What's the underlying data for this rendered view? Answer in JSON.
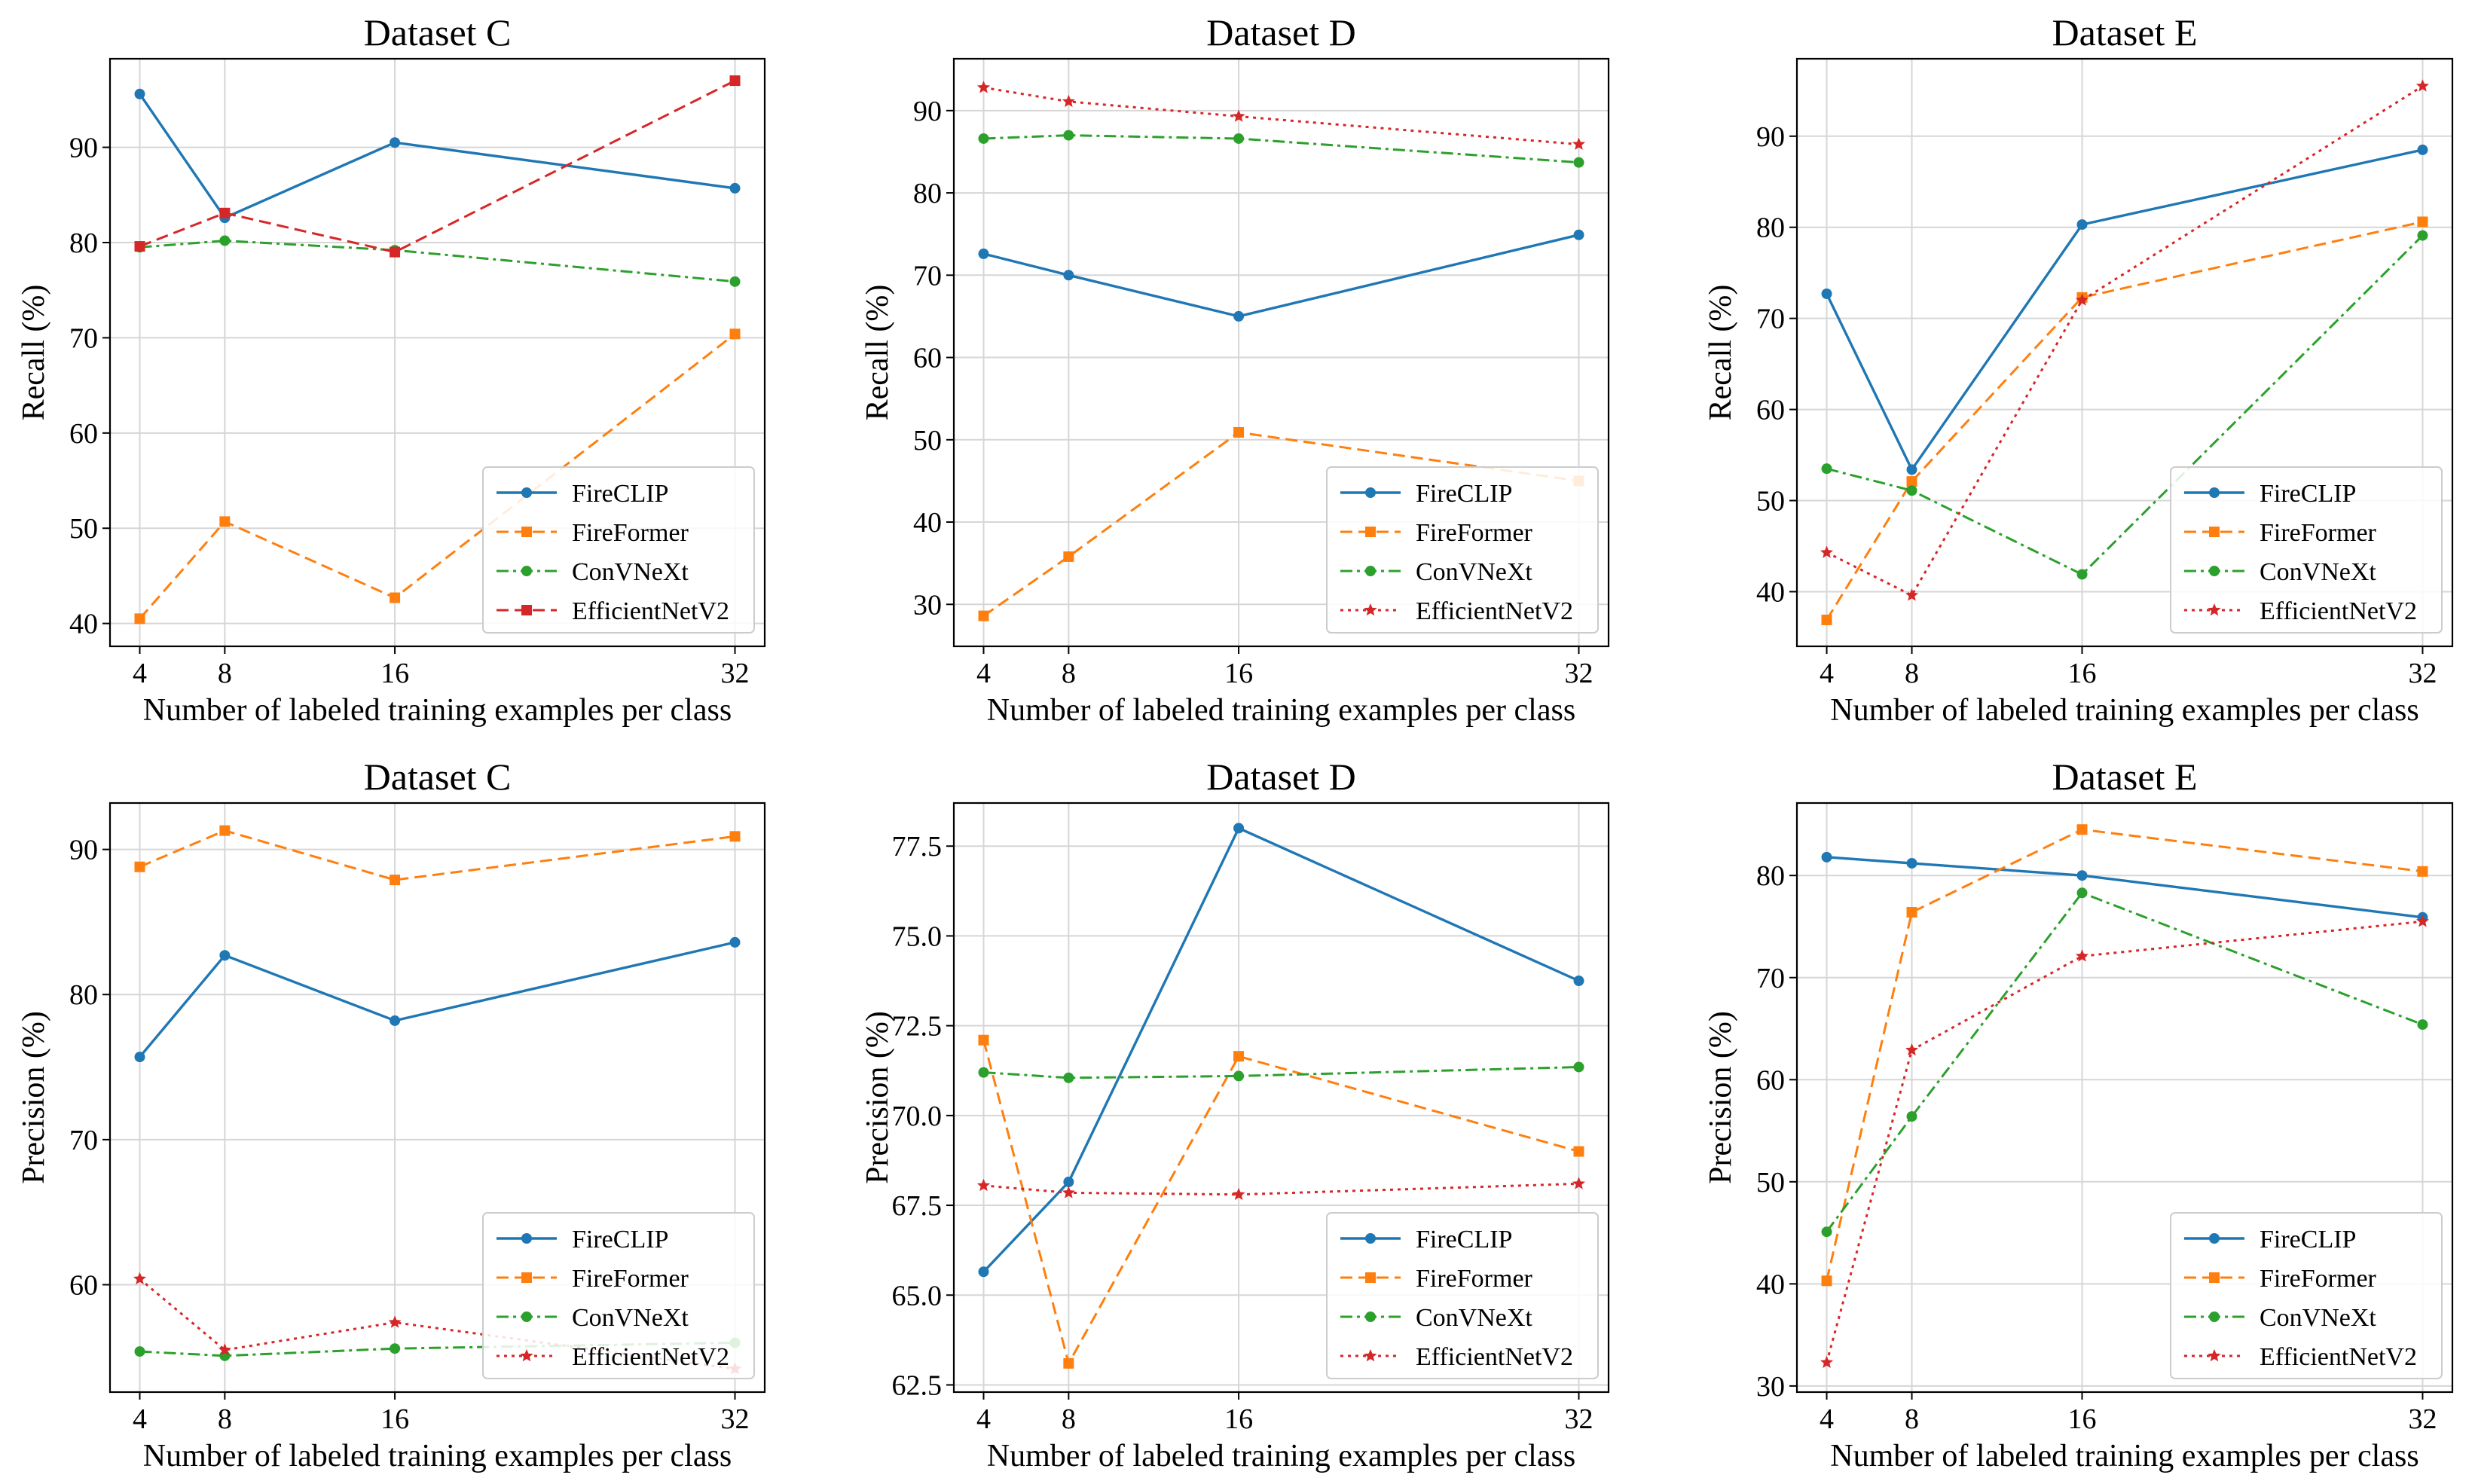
{
  "colors": {
    "FireCLIP": "#1f77b4",
    "FireFormer": "#ff7f0e",
    "ConVNeXt": "#2ca02c",
    "EfficientNetV2": "#d62728"
  },
  "chart_data": [
    {
      "type": "line",
      "title": "Dataset C",
      "xlabel": "Number of labeled training examples per class",
      "ylabel": "Recall (%)",
      "x": [
        4,
        8,
        16,
        32
      ],
      "xlim": [
        2.6,
        33.4
      ],
      "ylim": [
        37.6,
        99.3
      ],
      "yticks": [
        40,
        50,
        60,
        70,
        80,
        90
      ],
      "legend_position": "lower-right",
      "series": [
        {
          "name": "FireCLIP",
          "style": "solid",
          "marker": "circle",
          "values": [
            95.6,
            82.6,
            90.5,
            85.7
          ]
        },
        {
          "name": "FireFormer",
          "style": "dashed",
          "marker": "square",
          "values": [
            40.5,
            50.7,
            42.7,
            70.4
          ]
        },
        {
          "name": "ConVNeXt",
          "style": "dashdot",
          "marker": "circle",
          "values": [
            79.5,
            80.2,
            79.2,
            75.9
          ]
        },
        {
          "name": "EfficientNetV2",
          "style": "dashed",
          "marker": "square",
          "values": [
            79.6,
            83.1,
            79.0,
            97.0
          ]
        }
      ]
    },
    {
      "type": "line",
      "title": "Dataset D",
      "xlabel": "Number of labeled training examples per class",
      "ylabel": "Recall (%)",
      "x": [
        4,
        8,
        16,
        32
      ],
      "xlim": [
        2.6,
        33.4
      ],
      "ylim": [
        24.9,
        96.3
      ],
      "yticks": [
        30,
        40,
        50,
        60,
        70,
        80,
        90
      ],
      "legend_position": "lower-right",
      "series": [
        {
          "name": "FireCLIP",
          "style": "solid",
          "marker": "circle",
          "values": [
            72.6,
            70.0,
            65.0,
            74.9
          ]
        },
        {
          "name": "FireFormer",
          "style": "dashed",
          "marker": "square",
          "values": [
            28.6,
            35.8,
            50.9,
            45.0
          ]
        },
        {
          "name": "ConVNeXt",
          "style": "dashdot",
          "marker": "circle",
          "values": [
            86.6,
            87.0,
            86.6,
            83.7
          ]
        },
        {
          "name": "EfficientNetV2",
          "style": "dotted",
          "marker": "star",
          "values": [
            92.8,
            91.1,
            89.3,
            85.9
          ]
        }
      ]
    },
    {
      "type": "line",
      "title": "Dataset E",
      "xlabel": "Number of labeled training examples per class",
      "ylabel": "Recall (%)",
      "x": [
        4,
        8,
        16,
        32
      ],
      "xlim": [
        2.6,
        33.4
      ],
      "ylim": [
        34.0,
        98.5
      ],
      "yticks": [
        40,
        50,
        60,
        70,
        80,
        90
      ],
      "legend_position": "lower-right",
      "series": [
        {
          "name": "FireCLIP",
          "style": "solid",
          "marker": "circle",
          "values": [
            72.7,
            53.4,
            80.3,
            88.5
          ]
        },
        {
          "name": "FireFormer",
          "style": "dashed",
          "marker": "square",
          "values": [
            36.9,
            52.1,
            72.3,
            80.6
          ]
        },
        {
          "name": "ConVNeXt",
          "style": "dashdot",
          "marker": "circle",
          "values": [
            53.5,
            51.1,
            41.9,
            79.1
          ]
        },
        {
          "name": "EfficientNetV2",
          "style": "dotted",
          "marker": "star",
          "values": [
            44.3,
            39.6,
            72.0,
            95.5
          ]
        }
      ]
    },
    {
      "type": "line",
      "title": "Dataset C",
      "xlabel": "Number of labeled training examples per class",
      "ylabel": "Precision (%)",
      "x": [
        4,
        8,
        16,
        32
      ],
      "xlim": [
        2.6,
        33.4
      ],
      "ylim": [
        52.6,
        93.2
      ],
      "yticks": [
        60,
        70,
        80,
        90
      ],
      "legend_position": "lower-right",
      "series": [
        {
          "name": "FireCLIP",
          "style": "solid",
          "marker": "circle",
          "values": [
            75.7,
            82.7,
            78.2,
            83.6
          ]
        },
        {
          "name": "FireFormer",
          "style": "dashed",
          "marker": "square",
          "values": [
            88.8,
            91.3,
            87.9,
            90.9
          ]
        },
        {
          "name": "ConVNeXt",
          "style": "dashdot",
          "marker": "circle",
          "values": [
            55.4,
            55.1,
            55.6,
            56.0
          ]
        },
        {
          "name": "EfficientNetV2",
          "style": "dotted",
          "marker": "star",
          "values": [
            60.4,
            55.5,
            57.4,
            54.2
          ]
        }
      ]
    },
    {
      "type": "line",
      "title": "Dataset D",
      "xlabel": "Number of labeled training examples per class",
      "ylabel": "Precision (%)",
      "x": [
        4,
        8,
        16,
        32
      ],
      "xlim": [
        2.6,
        33.4
      ],
      "ylim": [
        62.3,
        78.7
      ],
      "yticks": [
        62.5,
        65.0,
        67.5,
        70.0,
        72.5,
        75.0,
        77.5
      ],
      "tick_decimals": 1,
      "legend_position": "lower-right",
      "series": [
        {
          "name": "FireCLIP",
          "style": "solid",
          "marker": "circle",
          "values": [
            65.65,
            68.15,
            78.0,
            73.75
          ]
        },
        {
          "name": "FireFormer",
          "style": "dashed",
          "marker": "square",
          "values": [
            72.1,
            63.1,
            71.65,
            69.0
          ]
        },
        {
          "name": "ConVNeXt",
          "style": "dashdot",
          "marker": "circle",
          "values": [
            71.2,
            71.05,
            71.1,
            71.35
          ]
        },
        {
          "name": "EfficientNetV2",
          "style": "dotted",
          "marker": "star",
          "values": [
            68.05,
            67.85,
            67.8,
            68.1
          ]
        }
      ]
    },
    {
      "type": "line",
      "title": "Dataset E",
      "xlabel": "Number of labeled training examples per class",
      "ylabel": "Precision (%)",
      "x": [
        4,
        8,
        16,
        32
      ],
      "xlim": [
        2.6,
        33.4
      ],
      "ylim": [
        29.4,
        87.1
      ],
      "yticks": [
        30,
        40,
        50,
        60,
        70,
        80
      ],
      "legend_position": "lower-right",
      "series": [
        {
          "name": "FireCLIP",
          "style": "solid",
          "marker": "circle",
          "values": [
            81.8,
            81.2,
            80.0,
            75.9
          ]
        },
        {
          "name": "FireFormer",
          "style": "dashed",
          "marker": "square",
          "values": [
            40.3,
            76.4,
            84.5,
            80.4
          ]
        },
        {
          "name": "ConVNeXt",
          "style": "dashdot",
          "marker": "circle",
          "values": [
            45.1,
            56.4,
            78.3,
            65.4
          ]
        },
        {
          "name": "EfficientNetV2",
          "style": "dotted",
          "marker": "star",
          "values": [
            32.3,
            62.9,
            72.1,
            75.5
          ]
        }
      ]
    }
  ]
}
